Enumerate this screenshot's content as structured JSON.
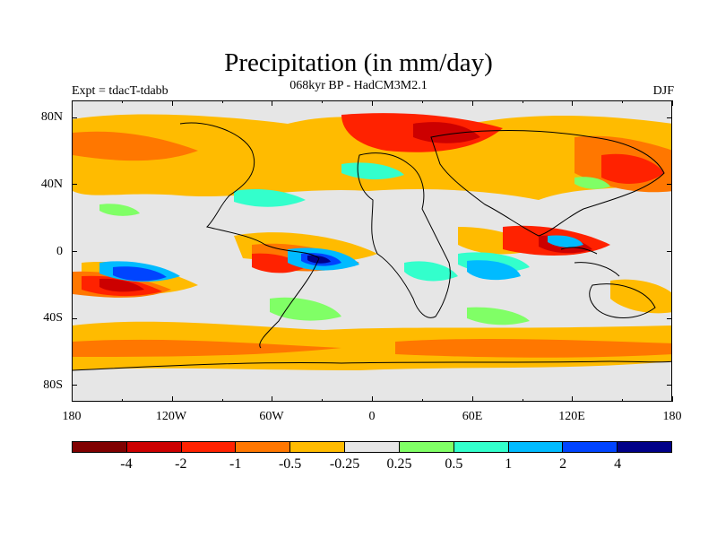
{
  "title": "Precipitation (in mm/day)",
  "subtitle": "068kyr BP - HadCM3M2.1",
  "expt_label": "Expt = tdacT-tdabb",
  "season": "DJF",
  "map": {
    "background_color": "#e6e6e6",
    "y_labels": [
      "80N",
      "40N",
      "0",
      "40S",
      "80S"
    ],
    "x_labels": [
      "180",
      "120W",
      "60W",
      "0",
      "60E",
      "120E",
      "180"
    ]
  },
  "colorbar": {
    "colors": [
      "#800000",
      "#cc0000",
      "#ff2200",
      "#ff7700",
      "#ffbb00",
      "#e6e6e6",
      "#80ff66",
      "#33ffcc",
      "#00bbff",
      "#0044ff",
      "#000088"
    ],
    "labels": [
      "-4",
      "-2",
      "-1",
      "-0.5",
      "-0.25",
      "0.25",
      "0.5",
      "1",
      "2",
      "4"
    ]
  }
}
